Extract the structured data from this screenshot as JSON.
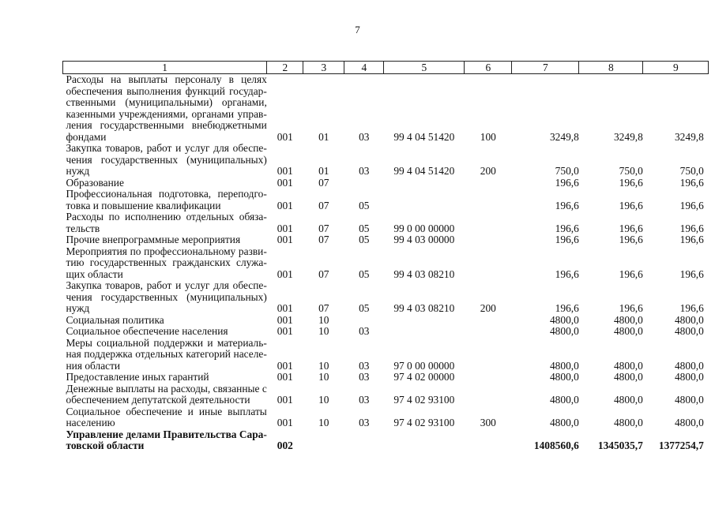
{
  "page_number": "7",
  "columns": [
    "1",
    "2",
    "3",
    "4",
    "5",
    "6",
    "7",
    "8",
    "9"
  ],
  "rows": [
    {
      "lines": [
        "Расходы на выплаты персоналу в целях",
        "обеспечения выполнения функций государ-",
        "ственными (муниципальными) органами,",
        "казенными учреждениями, органами управ-",
        "ления государственными внебюджетными",
        "фондами"
      ],
      "c2": "001",
      "c3": "01",
      "c4": "03",
      "c5": "99 4 04 51420",
      "c6": "100",
      "c7": "3249,8",
      "c8": "3249,8",
      "c9": "3249,8"
    },
    {
      "lines": [
        "Закупка товаров, работ и услуг для обеспе-",
        "чения государственных (муниципальных)",
        "нужд"
      ],
      "c2": "001",
      "c3": "01",
      "c4": "03",
      "c5": "99 4 04 51420",
      "c6": "200",
      "c7": "750,0",
      "c8": "750,0",
      "c9": "750,0"
    },
    {
      "lines": [
        "Образование"
      ],
      "c2": "001",
      "c3": "07",
      "c4": "",
      "c5": "",
      "c6": "",
      "c7": "196,6",
      "c8": "196,6",
      "c9": "196,6"
    },
    {
      "lines": [
        "Профессиональная подготовка, переподго-",
        "товка и повышение квалификации"
      ],
      "c2": "001",
      "c3": "07",
      "c4": "05",
      "c5": "",
      "c6": "",
      "c7": "196,6",
      "c8": "196,6",
      "c9": "196,6"
    },
    {
      "lines": [
        "Расходы по исполнению отдельных обяза-",
        "тельств"
      ],
      "c2": "001",
      "c3": "07",
      "c4": "05",
      "c5": "99 0 00 00000",
      "c6": "",
      "c7": "196,6",
      "c8": "196,6",
      "c9": "196,6"
    },
    {
      "lines": [
        "Прочие внепрограммные мероприятия"
      ],
      "c2": "001",
      "c3": "07",
      "c4": "05",
      "c5": "99 4 03 00000",
      "c6": "",
      "c7": "196,6",
      "c8": "196,6",
      "c9": "196,6"
    },
    {
      "lines": [
        "Мероприятия по профессиональному разви-",
        "тию государственных гражданских служа-",
        "щих области"
      ],
      "c2": "001",
      "c3": "07",
      "c4": "05",
      "c5": "99 4 03 08210",
      "c6": "",
      "c7": "196,6",
      "c8": "196,6",
      "c9": "196,6"
    },
    {
      "lines": [
        "Закупка товаров, работ и услуг для обеспе-",
        "чения государственных (муниципальных)",
        "нужд"
      ],
      "c2": "001",
      "c3": "07",
      "c4": "05",
      "c5": "99 4 03 08210",
      "c6": "200",
      "c7": "196,6",
      "c8": "196,6",
      "c9": "196,6"
    },
    {
      "lines": [
        "Социальная политика"
      ],
      "c2": "001",
      "c3": "10",
      "c4": "",
      "c5": "",
      "c6": "",
      "c7": "4800,0",
      "c8": "4800,0",
      "c9": "4800,0"
    },
    {
      "lines": [
        "Социальное обеспечение населения"
      ],
      "c2": "001",
      "c3": "10",
      "c4": "03",
      "c5": "",
      "c6": "",
      "c7": "4800,0",
      "c8": "4800,0",
      "c9": "4800,0"
    },
    {
      "lines": [
        "Меры социальной поддержки и материаль-",
        "ная поддержка отдельных категорий населе-",
        "ния области"
      ],
      "c2": "001",
      "c3": "10",
      "c4": "03",
      "c5": "97 0 00 00000",
      "c6": "",
      "c7": "4800,0",
      "c8": "4800,0",
      "c9": "4800,0"
    },
    {
      "lines": [
        "Предоставление иных гарантий"
      ],
      "c2": "001",
      "c3": "10",
      "c4": "03",
      "c5": "97 4 02 00000",
      "c6": "",
      "c7": "4800,0",
      "c8": "4800,0",
      "c9": "4800,0"
    },
    {
      "lines": [
        "Денежные выплаты на расходы, связанные с",
        "обеспечением депутатской деятельности"
      ],
      "c2": "001",
      "c3": "10",
      "c4": "03",
      "c5": "97 4 02 93100",
      "c6": "",
      "c7": "4800,0",
      "c8": "4800,0",
      "c9": "4800,0"
    },
    {
      "lines": [
        "Социальное обеспечение и иные выплаты",
        "населению"
      ],
      "c2": "001",
      "c3": "10",
      "c4": "03",
      "c5": "97 4 02 93100",
      "c6": "300",
      "c7": "4800,0",
      "c8": "4800,0",
      "c9": "4800,0"
    },
    {
      "lines": [
        "Управление делами Правительства Сара-",
        "товской области"
      ],
      "c2": "002",
      "c3": "",
      "c4": "",
      "c5": "",
      "c6": "",
      "c7": "1408560,6",
      "c8": "1345035,7",
      "c9": "1377254,7",
      "bold": true
    }
  ]
}
